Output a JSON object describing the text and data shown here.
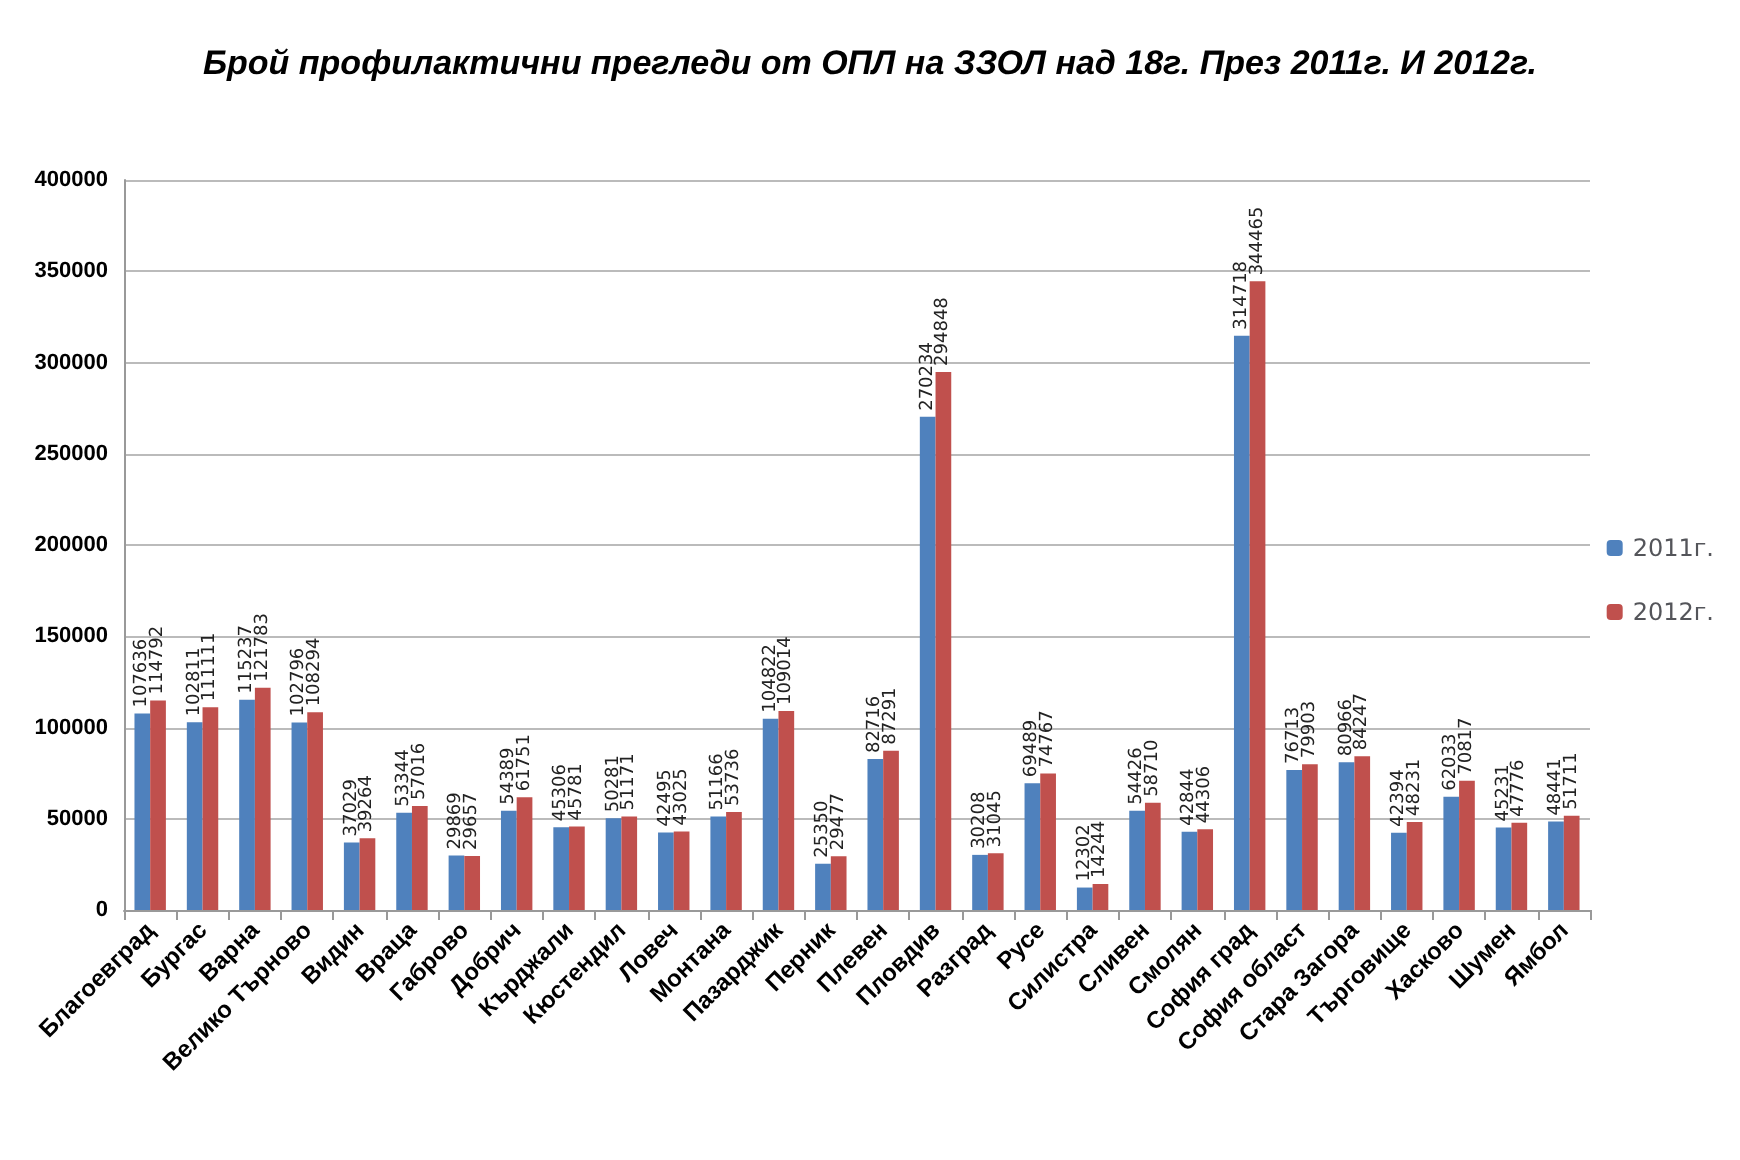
{
  "chart_data": {
    "type": "bar",
    "title": "Брой профилактични прегледи от ОПЛ на ЗЗОЛ над 18г. През 2011г. И 2012г.",
    "categories": [
      "Благоевград",
      "Бургас",
      "Варна",
      "Велико Търново",
      "Видин",
      "Враца",
      "Габрово",
      "Добрич",
      "Кърджали",
      "Кюстендил",
      "Ловеч",
      "Монтана",
      "Пазарджик",
      "Перник",
      "Плевен",
      "Пловдив",
      "Разград",
      "Русе",
      "Силистра",
      "Сливен",
      "Смолян",
      "София град",
      "София област",
      "Стара Загора",
      "Търговище",
      "Хасково",
      "Шумен",
      "Ямбол"
    ],
    "series": [
      {
        "name": "2011г.",
        "color": "#4f81bd",
        "values": [
          107636,
          102811,
          115237,
          102796,
          37029,
          53344,
          29869,
          54389,
          45306,
          50281,
          42495,
          51166,
          104822,
          25350,
          82716,
          270234,
          30208,
          69489,
          12302,
          54426,
          42844,
          314718,
          76713,
          80966,
          42394,
          62033,
          45231,
          48441
        ]
      },
      {
        "name": "2012г.",
        "color": "#c0504d",
        "values": [
          114792,
          111111,
          121783,
          108294,
          39264,
          57016,
          29657,
          61751,
          45781,
          51171,
          43025,
          53736,
          109014,
          29477,
          87291,
          294848,
          31045,
          74767,
          14244,
          58710,
          44306,
          344465,
          79903,
          84247,
          48231,
          70817,
          47776,
          51711
        ]
      }
    ],
    "ylim": [
      0,
      400000
    ],
    "yticks": [
      0,
      50000,
      100000,
      150000,
      200000,
      250000,
      300000,
      350000,
      400000
    ],
    "grid": "y",
    "legend": "right",
    "data_labels": true
  }
}
